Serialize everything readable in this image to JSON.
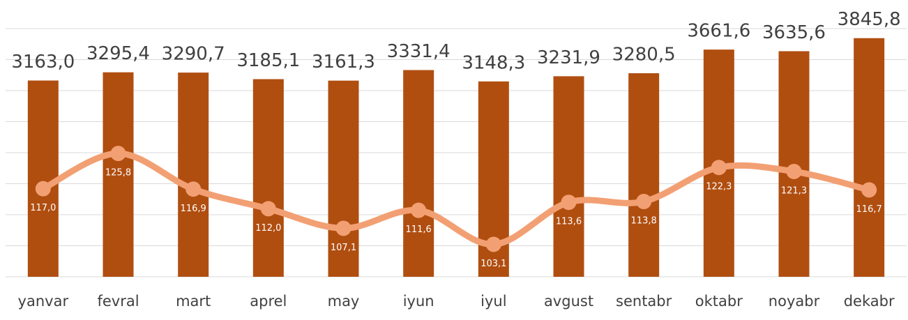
{
  "chart_data": {
    "type": "bar",
    "categories": [
      "yanvar",
      "fevral",
      "mart",
      "aprel",
      "may",
      "iyun",
      "iyul",
      "avgust",
      "sentabr",
      "oktabr",
      "noyabr",
      "dekabr"
    ],
    "series": [
      {
        "type": "bar",
        "color": "#b04e10",
        "values": [
          3163.0,
          3295.4,
          3290.7,
          3185.1,
          3161.3,
          3331.4,
          3148.3,
          3231.9,
          3280.5,
          3661.6,
          3635.6,
          3845.8
        ],
        "value_labels": [
          "3163,0",
          "3295,4",
          "3290,7",
          "3185,1",
          "3161,3",
          "3331,4",
          "3148,3",
          "3231,9",
          "3280,5",
          "3661,6",
          "3635,6",
          "3845,8"
        ]
      },
      {
        "type": "line",
        "axis": "y2",
        "color": "#f2a073",
        "values": [
          117.0,
          125.8,
          116.9,
          112.0,
          107.1,
          111.6,
          103.1,
          113.6,
          113.8,
          122.3,
          121.3,
          116.7
        ],
        "value_labels": [
          "117,0",
          "125,8",
          "116,9",
          "112,0",
          "107,1",
          "111,6",
          "103,1",
          "113,6",
          "113,8",
          "122,3",
          "121,3",
          "116,7"
        ]
      }
    ],
    "ylim": [
      0,
      4000
    ],
    "yticks": [
      0,
      500,
      1000,
      1500,
      2000,
      2500,
      3000,
      3500,
      4000
    ],
    "y2lim": [
      95,
      157
    ],
    "grid": true
  }
}
